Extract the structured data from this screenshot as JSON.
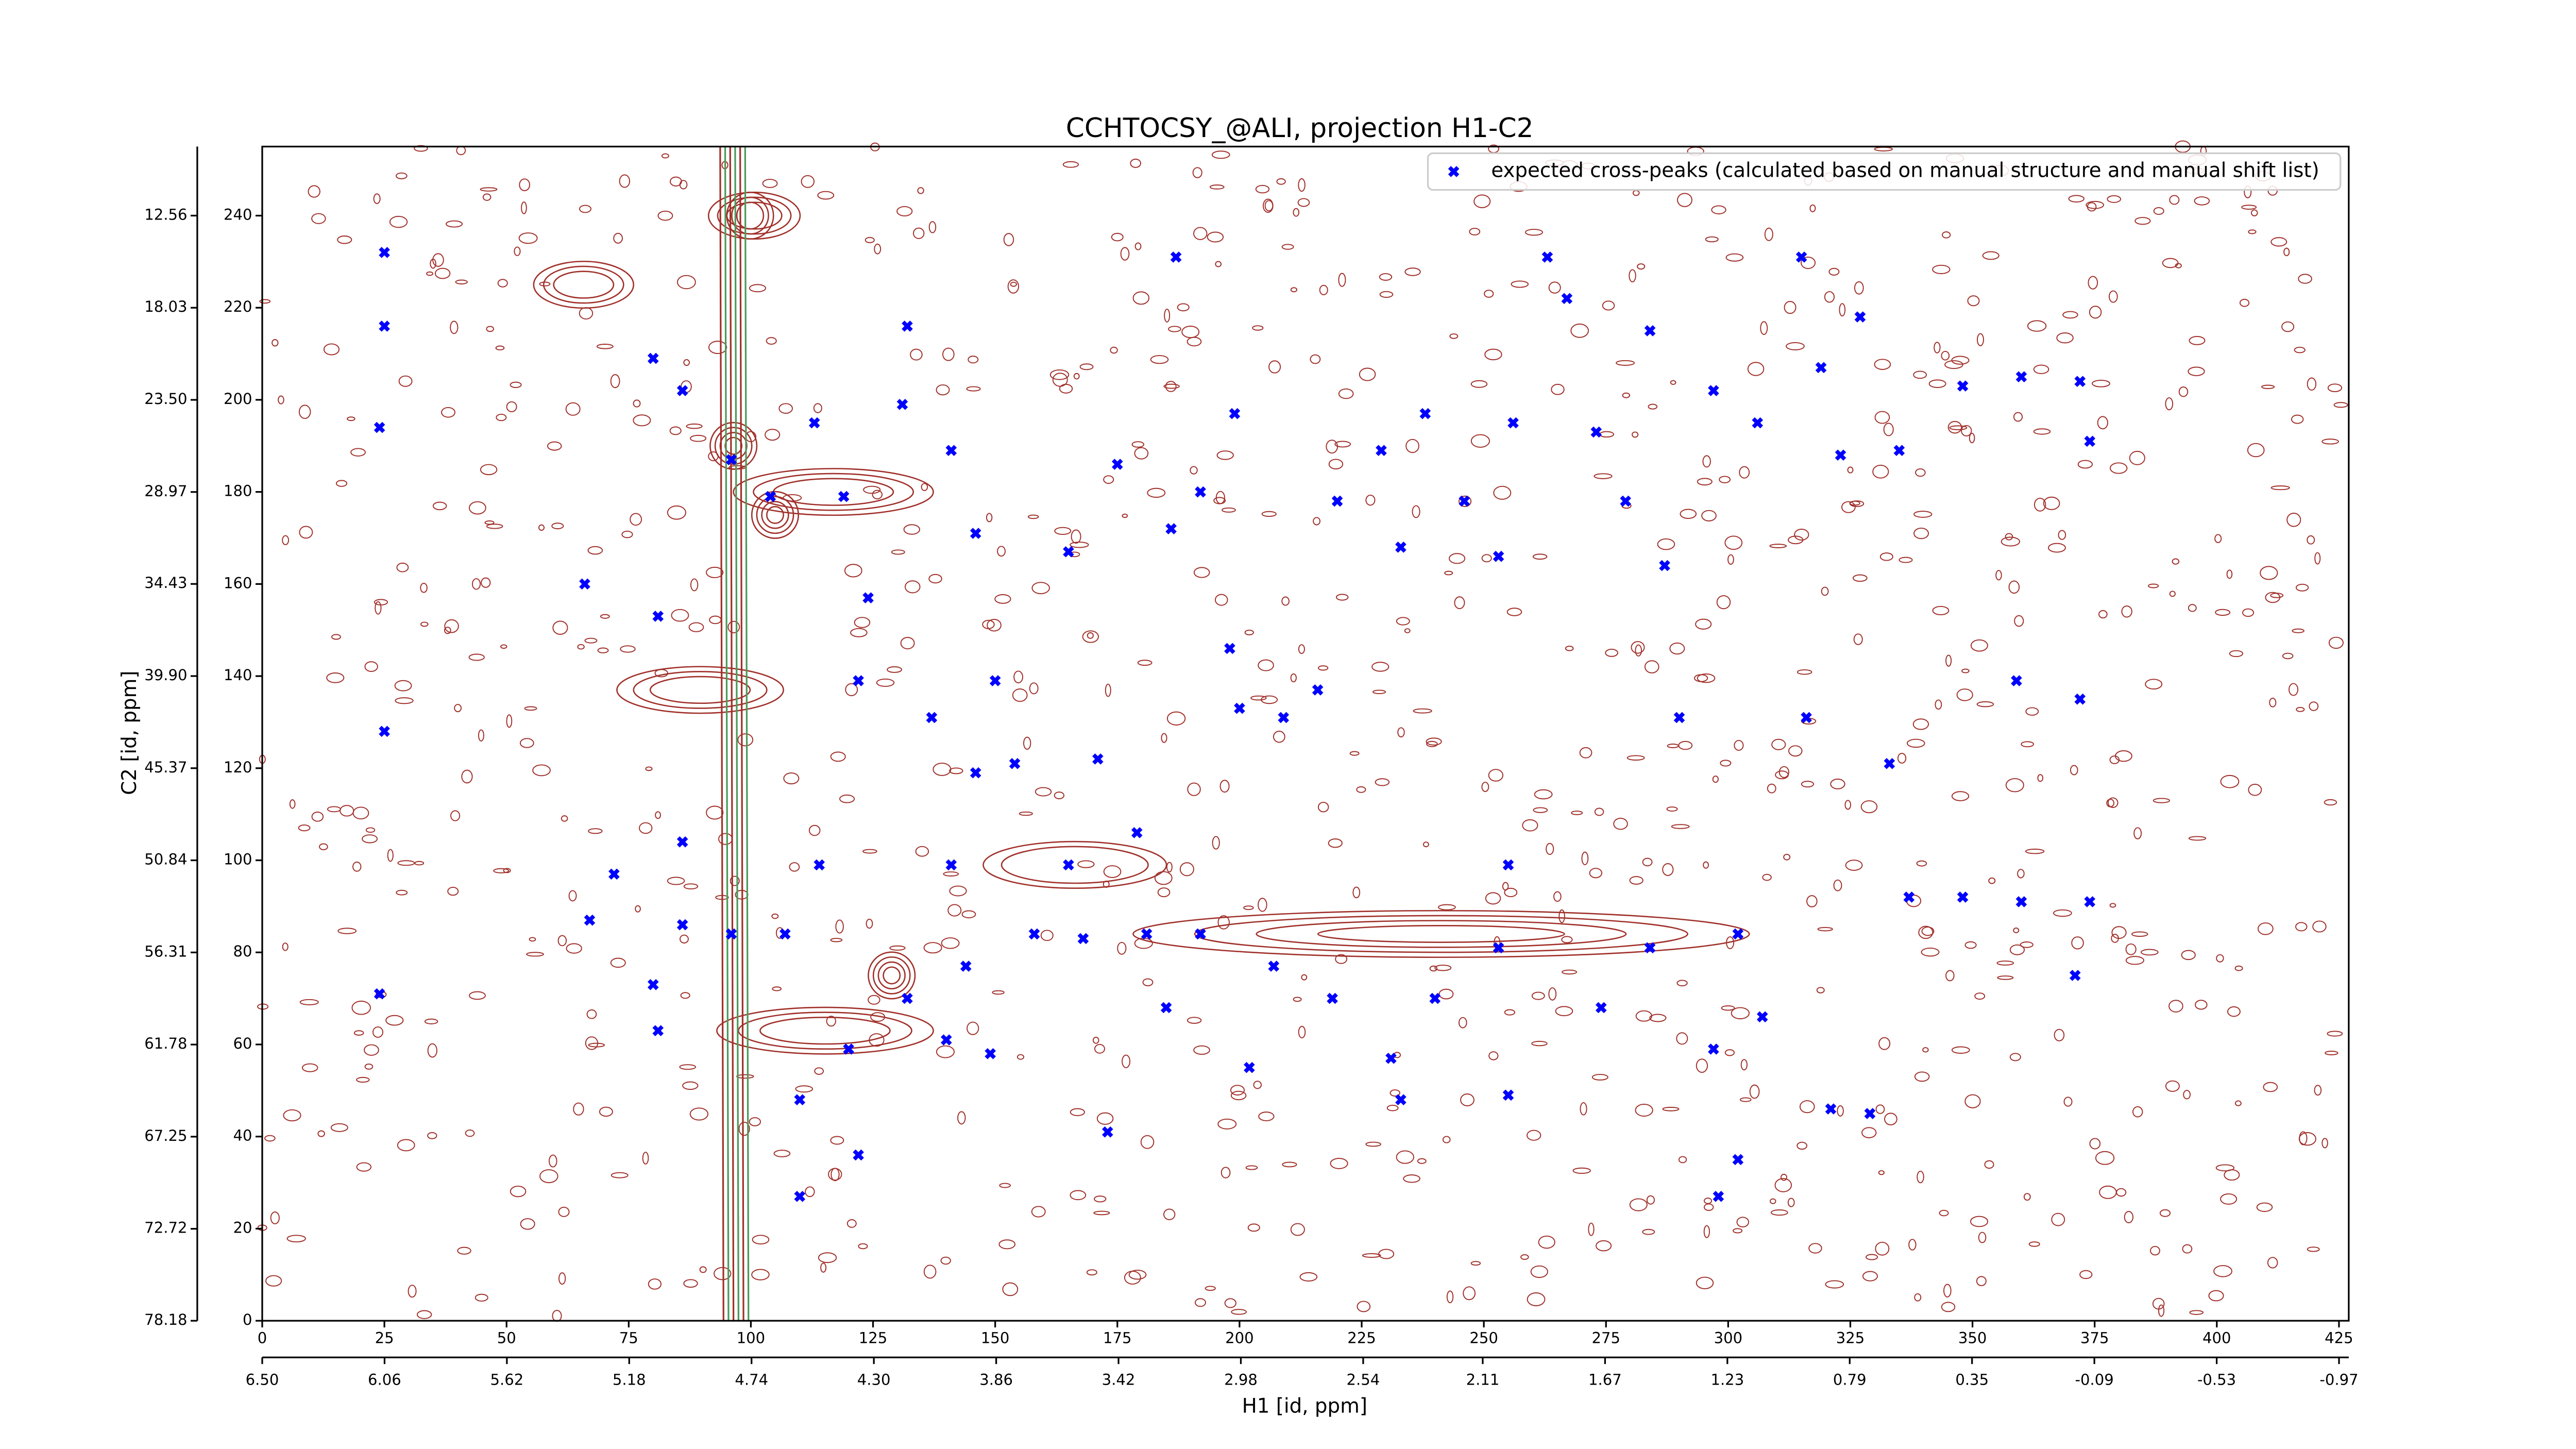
{
  "chart_data": {
    "type": "scatter",
    "title": "CCHTOCSY_@ALI, projection H1-C2",
    "xlabel": "H1 [id, ppm]",
    "ylabel": "C2 [id, ppm]",
    "legend": "upper right",
    "xlim": [
      0,
      427
    ],
    "xticks": [
      0,
      25,
      50,
      75,
      100,
      125,
      150,
      175,
      200,
      225,
      250,
      275,
      300,
      325,
      350,
      375,
      400,
      425
    ],
    "x2lim": [
      6.5,
      -1.005
    ],
    "x2ticks": [
      {
        "value": 6.5,
        "label": "6.50"
      },
      6.06,
      5.62,
      5.18,
      4.74,
      {
        "value": 4.3,
        "label": "4.30"
      },
      3.86,
      3.42,
      2.98,
      2.54,
      2.11,
      1.67,
      1.23,
      0.79,
      0.35,
      -0.09,
      -0.53,
      -0.97
    ],
    "ylim": [
      0,
      255
    ],
    "yticks": [
      0,
      20,
      40,
      60,
      80,
      100,
      120,
      140,
      160,
      180,
      200,
      220,
      240
    ],
    "y2lim": [
      78.18,
      8.46
    ],
    "y2ticks": [
      78.18,
      72.72,
      67.25,
      61.78,
      56.31,
      50.84,
      45.37,
      {
        "value": 39.9,
        "label": "39.90"
      },
      34.43,
      28.97,
      {
        "value": 23.5,
        "label": "23.50"
      },
      18.03,
      12.56
    ],
    "series": [
      {
        "name": "expected cross-peaks (calculated based on manual structure and manual shift list)",
        "color": "#0000ff",
        "x": [
          25,
          25,
          24,
          25,
          24,
          66,
          67,
          72,
          80,
          80,
          81,
          81,
          86,
          96,
          104,
          113,
          119,
          124,
          122,
          131,
          132,
          137,
          141,
          146,
          150,
          146,
          154,
          140,
          149,
          165,
          171,
          175,
          179,
          187,
          186,
          192,
          199,
          198,
          200,
          209,
          216,
          220,
          229,
          233,
          238,
          246,
          253,
          255,
          256,
          263,
          267,
          273,
          279,
          284,
          287,
          290,
          297,
          302,
          306,
          315,
          319,
          323,
          327,
          335,
          348,
          360,
          372,
          374,
          359,
          372,
          333,
          316,
          337,
          348,
          360,
          374,
          371,
          329,
          302,
          298,
          274,
          284,
          253,
          240,
          231,
          219,
          207,
          192,
          181,
          168,
          158,
          144,
          132,
          120,
          110,
          107,
          96,
          86,
          122,
          110,
          173,
          185,
          202,
          255,
          233,
          321,
          307,
          297,
          86,
          114,
          141,
          165
        ],
        "y": [
          232,
          216,
          194,
          128,
          71,
          160,
          87,
          97,
          209,
          73,
          63,
          153,
          202,
          187,
          179,
          195,
          179,
          157,
          139,
          199,
          216,
          131,
          189,
          171,
          139,
          119,
          121,
          61,
          58,
          167,
          122,
          186,
          106,
          231,
          172,
          180,
          197,
          146,
          133,
          131,
          137,
          178,
          189,
          168,
          197,
          178,
          166,
          99,
          195,
          231,
          222,
          193,
          178,
          215,
          164,
          131,
          202,
          84,
          195,
          231,
          207,
          188,
          218,
          189,
          203,
          205,
          204,
          191,
          139,
          135,
          121,
          131,
          92,
          92,
          91,
          91,
          75,
          45,
          35,
          27,
          68,
          81,
          81,
          70,
          57,
          70,
          77,
          84,
          84,
          83,
          84,
          77,
          70,
          59,
          48,
          84,
          84,
          86,
          36,
          27,
          41,
          68,
          55,
          49,
          48,
          46,
          66,
          59,
          104,
          99,
          99,
          99
        ]
      }
    ]
  }
}
